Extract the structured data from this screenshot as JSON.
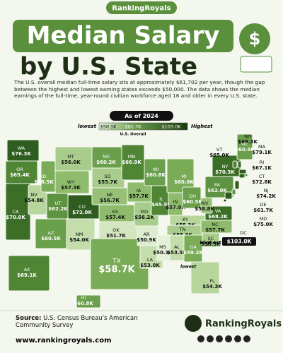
{
  "brand": "RankingRoyals",
  "title": {
    "line1": "Median Salary",
    "line2": "by U.S. State"
  },
  "description": "The U.S. overall median full-time salary sits at approximately $61,702 per year, though the gap between the highest and lowest earning states exceeds $50,000. The data  shows the median earnings of the full-time, year-round civilian workforce aged 16 and older in every U.S. state.",
  "as_of": "As of 2024",
  "legend": {
    "low_label": "lowest",
    "high_label": "Highest",
    "min": "$50.1K",
    "mid": "$61.7K",
    "max": "$103.0K",
    "mid_caption": "U.S. Overall"
  },
  "states": [
    {
      "abbr": "WA",
      "value": "$76.3K",
      "color": "#2f5d1f"
    },
    {
      "abbr": "OR",
      "value": "$65.4K",
      "color": "#4f8535"
    },
    {
      "abbr": "CA",
      "value": "$70.0K",
      "color": "#3c6e28"
    },
    {
      "abbr": "NV",
      "value": "$54.8K",
      "color": "#b7d69c"
    },
    {
      "abbr": "ID",
      "value": "$58.5K",
      "color": "#7aab57"
    },
    {
      "abbr": "MT",
      "value": "$56.0K",
      "color": "#a8cc8b"
    },
    {
      "abbr": "WY",
      "value": "$57.3K",
      "color": "#8fbb6c"
    },
    {
      "abbr": "UT",
      "value": "$62.2K",
      "color": "#5e9342"
    },
    {
      "abbr": "CO",
      "value": "$72.0K",
      "color": "#2f5d1f"
    },
    {
      "abbr": "AZ",
      "value": "$60.5K",
      "color": "#6a9f4b"
    },
    {
      "abbr": "NM",
      "value": "$54.0K",
      "color": "#c3ddab"
    },
    {
      "abbr": "ND",
      "value": "$60.2K",
      "color": "#6a9f4b"
    },
    {
      "abbr": "SD",
      "value": "$55.7K",
      "color": "#a8cc8b"
    },
    {
      "abbr": "NE",
      "value": "$56.7K",
      "color": "#96c076"
    },
    {
      "abbr": "KS",
      "value": "$57.4K",
      "color": "#8fbb6c"
    },
    {
      "abbr": "OK",
      "value": "$51.7K",
      "color": "#d3e6c0"
    },
    {
      "abbr": "TX",
      "value": "$58.7K",
      "color": "#7aab57"
    },
    {
      "abbr": "MN",
      "value": "$66.9K",
      "color": "#4f8535"
    },
    {
      "abbr": "IA",
      "value": "$57.7K",
      "color": "#8fbb6c"
    },
    {
      "abbr": "MO",
      "value": "$56.2K",
      "color": "#a8cc8b"
    },
    {
      "abbr": "AR",
      "value": "$50.9K",
      "color": "#dcecce"
    },
    {
      "abbr": "LA",
      "value": "$53.0K",
      "color": "#c3ddab"
    },
    {
      "abbr": "WI",
      "value": "$60.8K",
      "color": "#6a9f4b"
    },
    {
      "abbr": "IL",
      "value": "$65.5K",
      "color": "#4f8535"
    },
    {
      "abbr": "MI",
      "value": "$60.0K",
      "color": "#7aab57"
    },
    {
      "abbr": "IN",
      "value": "$57.9K",
      "color": "#8fbb6c"
    },
    {
      "abbr": "OH",
      "value": "$60.5K",
      "color": "#6a9f4b"
    },
    {
      "abbr": "KY",
      "value": "$55.3K",
      "color": "#b7d69c"
    },
    {
      "abbr": "TN",
      "value": "$55.3K",
      "color": "#a8cc8b"
    },
    {
      "abbr": "MS",
      "value": "$50.1K",
      "color": "#e4f0d8"
    },
    {
      "abbr": "AL",
      "value": "$53.5K",
      "color": "#c3ddab"
    },
    {
      "abbr": "GA",
      "value": "$59.2K",
      "color": "#7aab57"
    },
    {
      "abbr": "FL",
      "value": "$54.3K",
      "color": "#b7d69c"
    },
    {
      "abbr": "SC",
      "value": "$55.3K",
      "color": "#a8cc8b"
    },
    {
      "abbr": "NC",
      "value": "$57.7K",
      "color": "#8fbb6c"
    },
    {
      "abbr": "VA",
      "value": "$68.2K",
      "color": "#3c6e28"
    },
    {
      "abbr": "WV",
      "value": "$58.8K",
      "color": "#96c076"
    },
    {
      "abbr": "PA",
      "value": "$62.0K",
      "color": "#5e9342"
    },
    {
      "abbr": "NY",
      "value": "$70.3K",
      "color": "#3c6e28"
    },
    {
      "abbr": "ME",
      "value": "$60.9K",
      "color": "#6a9f4b"
    },
    {
      "abbr": "NH",
      "value": "$69.3K",
      "color": "#3c6e28"
    },
    {
      "abbr": "VT",
      "value": "$65.0K",
      "color": "#4f8535"
    },
    {
      "abbr": "MA",
      "value": "$79.1K",
      "color": "#2f5d1f"
    },
    {
      "abbr": "RI",
      "value": "$67.1K",
      "color": "#4f8535"
    },
    {
      "abbr": "CT",
      "value": "$72.8K",
      "color": "#2f5d1f"
    },
    {
      "abbr": "NJ",
      "value": "$74.2K",
      "color": "#2f5d1f"
    },
    {
      "abbr": "DE",
      "value": "$61.7K",
      "color": "#5e9342"
    },
    {
      "abbr": "MD",
      "value": "$75.0K",
      "color": "#2f5d1f"
    },
    {
      "abbr": "DC",
      "value": "$103.0K",
      "color": "#1b3a10"
    },
    {
      "abbr": "AK",
      "value": "$69.1K",
      "color": "#4f8535"
    },
    {
      "abbr": "HI",
      "value": "$60.8K",
      "color": "#6a9f4b"
    }
  ],
  "annotations": {
    "highest": "Highest",
    "lowest": "lowest"
  },
  "footer": {
    "source_label": "Source:",
    "source": "U.S. Census Bureau's American Community Survey",
    "website": "www.rankingroyals.com",
    "brand": "RankingRoyals"
  }
}
